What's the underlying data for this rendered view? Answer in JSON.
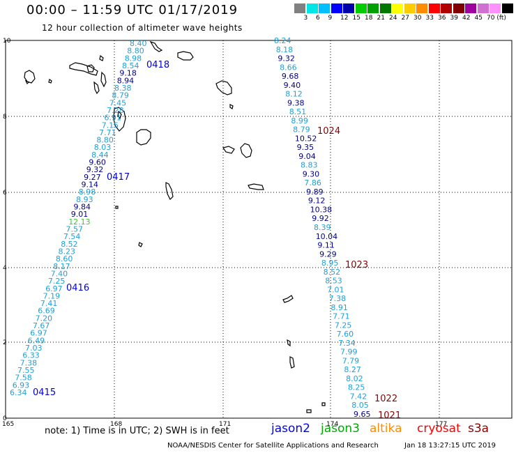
{
  "header": {
    "title": "00:00 – 11:59 UTC 01/17/2019",
    "subtitle": "12 hour collection of altimeter wave heights"
  },
  "legend": {
    "colors": [
      "#808080",
      "#00e6e6",
      "#00bfff",
      "#0000ff",
      "#0000aa",
      "#00cc00",
      "#00a000",
      "#007800",
      "#ffff00",
      "#ffcc00",
      "#ff8c00",
      "#ff0000",
      "#b00000",
      "#800000",
      "#a000a0",
      "#d070d0",
      "#ff90ff",
      "#000000"
    ],
    "ticks": [
      "3",
      "6",
      "9",
      "12",
      "15",
      "18",
      "21",
      "24",
      "27",
      "30",
      "33",
      "36",
      "39",
      "42",
      "45",
      "70 (ft)"
    ]
  },
  "axes": {
    "x_ticks": [
      "165",
      "168",
      "171",
      "174",
      "177"
    ],
    "y_ticks": [
      "0",
      "2",
      "4",
      "6",
      "8",
      "10"
    ]
  },
  "tracks": [
    {
      "labels": [
        {
          "t": "6.34",
          "c": "#1fa0d8"
        },
        {
          "t": "6.93",
          "c": "#1fa0d8"
        },
        {
          "t": "7.58",
          "c": "#1fa0d8"
        },
        {
          "t": "7.55",
          "c": "#1fa0d8"
        },
        {
          "t": "7.38",
          "c": "#1fa0d8"
        },
        {
          "t": "6.33",
          "c": "#1fa0d8"
        },
        {
          "t": "7.03",
          "c": "#1fa0d8"
        },
        {
          "t": "6.49",
          "c": "#1fa0d8"
        },
        {
          "t": "6.97",
          "c": "#1fa0d8"
        },
        {
          "t": "7.67",
          "c": "#1fa0d8"
        },
        {
          "t": "7.20",
          "c": "#1fa0d8"
        },
        {
          "t": "6.69",
          "c": "#1fa0d8"
        },
        {
          "t": "7.41",
          "c": "#1fa0d8"
        },
        {
          "t": "7.19",
          "c": "#1fa0d8"
        },
        {
          "t": "6.97",
          "c": "#1fa0d8"
        },
        {
          "t": "7.25",
          "c": "#1fa0d8"
        },
        {
          "t": "7.40",
          "c": "#1fa0d8"
        },
        {
          "t": "8.17",
          "c": "#1fa0d8"
        },
        {
          "t": "8.60",
          "c": "#1fa0d8"
        },
        {
          "t": "8.23",
          "c": "#1fa0d8"
        },
        {
          "t": "8.52",
          "c": "#1fa0d8"
        },
        {
          "t": "7.54",
          "c": "#1fa0d8"
        },
        {
          "t": "7.57",
          "c": "#1fa0d8"
        },
        {
          "t": "12.13",
          "c": "#33cc33"
        },
        {
          "t": "9.01",
          "c": "#00008b"
        },
        {
          "t": "9.84",
          "c": "#00008b"
        },
        {
          "t": "8.93",
          "c": "#1fa0d8"
        },
        {
          "t": "8.98",
          "c": "#1fa0d8"
        },
        {
          "t": "9.14",
          "c": "#00008b"
        },
        {
          "t": "9.27",
          "c": "#00008b"
        },
        {
          "t": "9.32",
          "c": "#00008b"
        },
        {
          "t": "9.60",
          "c": "#00008b"
        },
        {
          "t": "8.44",
          "c": "#1fa0d8"
        },
        {
          "t": "8.03",
          "c": "#1fa0d8"
        },
        {
          "t": "8.80",
          "c": "#1fa0d8"
        },
        {
          "t": "7.71",
          "c": "#1fa0d8"
        },
        {
          "t": "7.15",
          "c": "#1fa0d8"
        },
        {
          "t": "6.91",
          "c": "#1fa0d8"
        },
        {
          "t": "7.28",
          "c": "#1fa0d8"
        },
        {
          "t": "7.45",
          "c": "#1fa0d8"
        },
        {
          "t": "8.79",
          "c": "#1fa0d8"
        },
        {
          "t": "8.38",
          "c": "#1fa0d8"
        },
        {
          "t": "8.94",
          "c": "#00008b"
        },
        {
          "t": "9.18",
          "c": "#00008b"
        },
        {
          "t": "8.54",
          "c": "#1fa0d8"
        },
        {
          "t": "8.98",
          "c": "#1fa0d8"
        },
        {
          "t": "8.80",
          "c": "#1fa0d8"
        },
        {
          "t": "8.40",
          "c": "#1fa0d8"
        }
      ],
      "times": [
        {
          "t": "0415",
          "c": "#0000dd"
        },
        {
          "t": "0416",
          "c": "#0000dd"
        },
        {
          "t": "0417",
          "c": "#0000dd"
        },
        {
          "t": "0418",
          "c": "#0000dd"
        }
      ]
    },
    {
      "labels": [
        {
          "t": "8.24",
          "c": "#1fa0d8"
        },
        {
          "t": "8.18",
          "c": "#1fa0d8"
        },
        {
          "t": "9.32",
          "c": "#00008b"
        },
        {
          "t": "8.66",
          "c": "#1fa0d8"
        },
        {
          "t": "9.68",
          "c": "#00008b"
        },
        {
          "t": "9.40",
          "c": "#00008b"
        },
        {
          "t": "8.12",
          "c": "#1fa0d8"
        },
        {
          "t": "9.38",
          "c": "#00008b"
        },
        {
          "t": "8.51",
          "c": "#1fa0d8"
        },
        {
          "t": "8.99",
          "c": "#1fa0d8"
        },
        {
          "t": "8.79",
          "c": "#1fa0d8"
        },
        {
          "t": "10.52",
          "c": "#00008b"
        },
        {
          "t": "9.35",
          "c": "#00008b"
        },
        {
          "t": "9.04",
          "c": "#00008b"
        },
        {
          "t": "8.83",
          "c": "#1fa0d8"
        },
        {
          "t": "9.30",
          "c": "#00008b"
        },
        {
          "t": "7.86",
          "c": "#1fa0d8"
        },
        {
          "t": "9.89",
          "c": "#00008b"
        },
        {
          "t": "9.12",
          "c": "#00008b"
        },
        {
          "t": "10.38",
          "c": "#00008b"
        },
        {
          "t": "9.92",
          "c": "#00008b"
        },
        {
          "t": "8.39",
          "c": "#1fa0d8"
        },
        {
          "t": "10.04",
          "c": "#00008b"
        },
        {
          "t": "9.11",
          "c": "#00008b"
        },
        {
          "t": "9.29",
          "c": "#00008b"
        },
        {
          "t": "8.95",
          "c": "#1fa0d8"
        },
        {
          "t": "8.52",
          "c": "#1fa0d8"
        },
        {
          "t": "8.53",
          "c": "#1fa0d8"
        },
        {
          "t": "7.01",
          "c": "#1fa0d8"
        },
        {
          "t": "7.38",
          "c": "#1fa0d8"
        },
        {
          "t": "8.91",
          "c": "#1fa0d8"
        },
        {
          "t": "7.71",
          "c": "#1fa0d8"
        },
        {
          "t": "7.25",
          "c": "#1fa0d8"
        },
        {
          "t": "7.60",
          "c": "#1fa0d8"
        },
        {
          "t": "7.34",
          "c": "#1fa0d8"
        },
        {
          "t": "7.99",
          "c": "#1fa0d8"
        },
        {
          "t": "7.79",
          "c": "#1fa0d8"
        },
        {
          "t": "8.27",
          "c": "#1fa0d8"
        },
        {
          "t": "8.02",
          "c": "#1fa0d8"
        },
        {
          "t": "8.25",
          "c": "#1fa0d8"
        },
        {
          "t": "7.42",
          "c": "#1fa0d8"
        },
        {
          "t": "8.05",
          "c": "#1fa0d8"
        },
        {
          "t": "9.65",
          "c": "#00008b"
        }
      ],
      "times": [
        {
          "t": "1024",
          "c": "#8b0000"
        },
        {
          "t": "1023",
          "c": "#8b0000"
        },
        {
          "t": "1022",
          "c": "#8b0000"
        },
        {
          "t": "1021",
          "c": "#8b0000"
        }
      ]
    }
  ],
  "footer": {
    "note": "note:  1) Time is in UTC;  2) SWH is in feet",
    "satellites": [
      {
        "name": "jason2",
        "color": "#0000ff"
      },
      {
        "name": "jason3",
        "color": "#00aa00"
      },
      {
        "name": "altika",
        "color": "#ff8c00"
      },
      {
        "name": "cryosat",
        "color": "#ff0000"
      },
      {
        "name": "s3a",
        "color": "#8b0000"
      }
    ],
    "credit": "NOAA/NESDIS Center for Satellite Applications and Research",
    "timestamp": "Jan 18 13:27:15 UTC 2019"
  }
}
